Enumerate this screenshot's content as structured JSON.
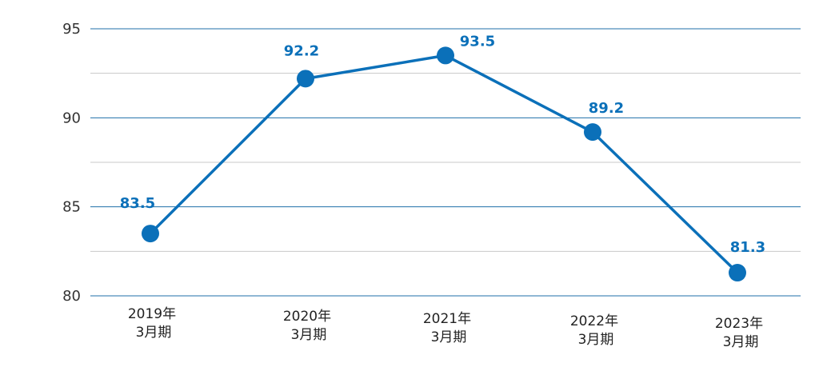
{
  "chart_data": {
    "type": "line",
    "categories": [
      [
        "2019年",
        "3月期"
      ],
      [
        "2020年",
        "3月期"
      ],
      [
        "2021年",
        "3月期"
      ],
      [
        "2022年",
        "3月期"
      ],
      [
        "2023年",
        "3月期"
      ]
    ],
    "series": [
      {
        "values": [
          83.5,
          92.2,
          93.5,
          89.2,
          81.3
        ]
      }
    ],
    "data_labels": [
      "83.5",
      "92.2",
      "93.5",
      "89.2",
      "81.3"
    ],
    "yticks": [
      "80",
      "85",
      "90",
      "95"
    ],
    "ylim": [
      80,
      95
    ],
    "grid": true,
    "legend": "none",
    "colors": {
      "line": "#0b70b9",
      "label": "#0b70b9",
      "major_grid": "#1f6fa8",
      "minor_grid": "#c8c8c8"
    }
  }
}
